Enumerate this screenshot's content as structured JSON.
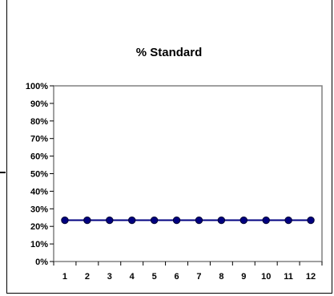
{
  "chart_data": {
    "type": "line",
    "title": "% Standard",
    "xlabel": "",
    "ylabel": "",
    "categories": [
      "1",
      "2",
      "3",
      "4",
      "5",
      "6",
      "7",
      "8",
      "9",
      "10",
      "11",
      "12"
    ],
    "series": [
      {
        "values": [
          0.235,
          0.235,
          0.235,
          0.235,
          0.235,
          0.235,
          0.235,
          0.235,
          0.235,
          0.235,
          0.235,
          0.235
        ]
      }
    ],
    "ylim": [
      0,
      1
    ],
    "yticks": [
      "0%",
      "10%",
      "20%",
      "30%",
      "40%",
      "50%",
      "60%",
      "70%",
      "80%",
      "90%",
      "100%"
    ],
    "grid": false,
    "legend": "none",
    "colors": {
      "line": "#000080",
      "marker": "#000080",
      "axes": "#808080"
    }
  }
}
